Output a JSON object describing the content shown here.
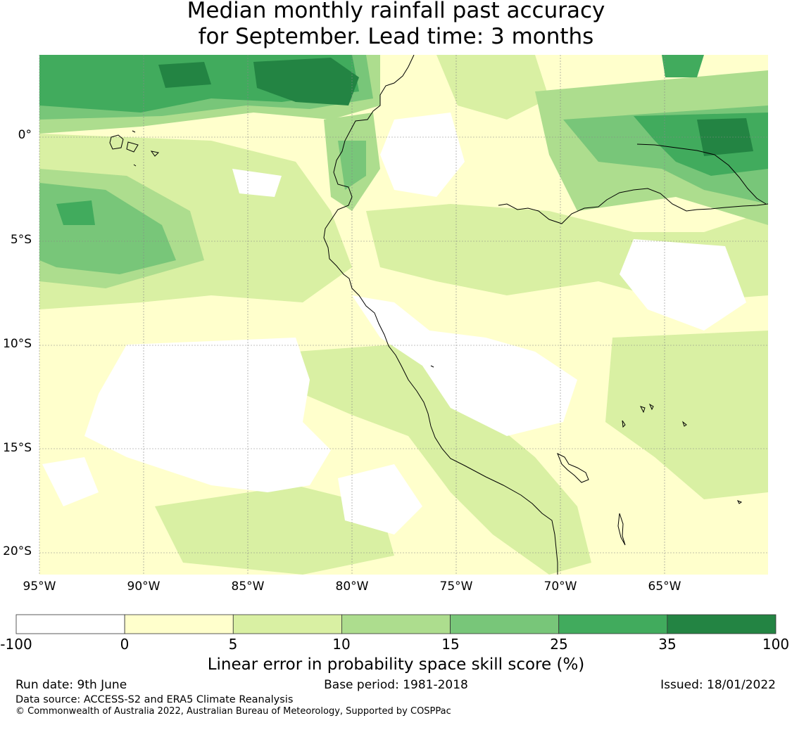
{
  "title": {
    "line1": "Median monthly rainfall past accuracy",
    "line2": "for September. Lead time: 3 months"
  },
  "map": {
    "lat_labels": [
      "0°",
      "5°S",
      "10°S",
      "15°S",
      "20°S"
    ],
    "lon_labels": [
      "95°W",
      "90°W",
      "85°W",
      "80°W",
      "75°W",
      "70°W",
      "65°W"
    ],
    "extent": {
      "lon_min": -95,
      "lon_max": -60,
      "lat_min": -21,
      "lat_max": 4
    },
    "land_outline_color": "#000000",
    "gridline_color": "#888888"
  },
  "colorbar": {
    "boundaries": [
      "-100",
      "0",
      "5",
      "10",
      "15",
      "25",
      "35",
      "100"
    ],
    "colors": [
      "#ffffff",
      "#ffffcc",
      "#d9f0a3",
      "#addd8e",
      "#78c679",
      "#41ab5d",
      "#238443"
    ],
    "label": "Linear error in probability space skill score (%)"
  },
  "footer": {
    "run_date": "Run date: 9th June",
    "base_period": "Base period: 1981-2018",
    "issued": "Issued: 18/01/2022",
    "data_source": "Data source: ACCESS-S2 and ERA5 Climate Reanalysis",
    "copyright": "© Commonwealth of Australia 2022, Australian Bureau of Meteorology, Supported by COSPPac"
  }
}
